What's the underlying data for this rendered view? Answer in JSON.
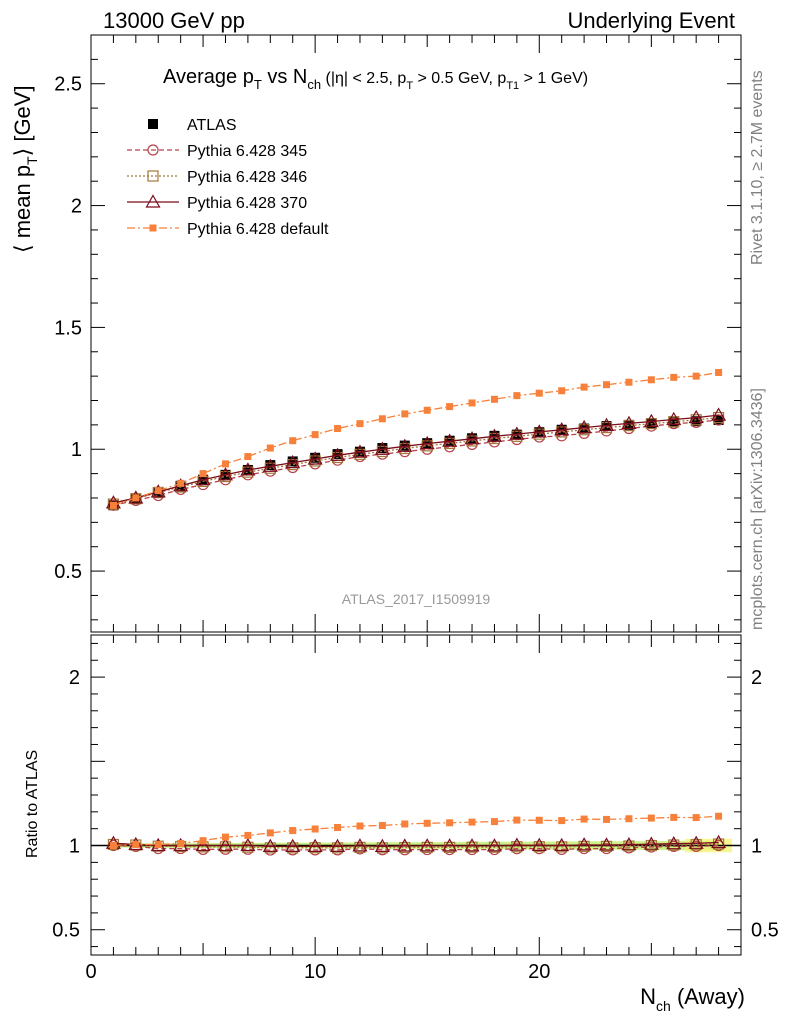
{
  "header": {
    "left": "13000 GeV pp",
    "right": "Underlying Event"
  },
  "side_text": {
    "rivet": "Rivet 3.1.10, ≥ 2.7M events",
    "mcplots": "mcplots.cern.ch [arXiv:1306.3436]"
  },
  "watermark": "ATLAS_2017_I1509919",
  "title": {
    "prefix": "Average p",
    "sub1": "T",
    "mid": " vs N",
    "sub2": "ch",
    "cuts": " (|η| < 2.5, p",
    "sub3": "T",
    "cuts2": " > 0.5 GeV, p",
    "sub4": "T1",
    "cuts3": " > 1 GeV)"
  },
  "colors": {
    "atlas": "#000000",
    "p345": "#b8404a",
    "p346": "#a07838",
    "p370": "#7a0c1c",
    "pdef": "#f7813a",
    "band_green": "#c8f07a",
    "band_yellow": "#f4f47a"
  },
  "chart_data": [
    {
      "type": "line",
      "panel": "main",
      "ylabel": "⟨ mean p",
      "ylabel_sub": "T",
      "ylabel_suffix": "⟩ [GeV]",
      "xlim": [
        0,
        29
      ],
      "ylim": [
        0.25,
        2.7
      ],
      "yticks": [
        0.5,
        1,
        1.5,
        2,
        2.5
      ],
      "legend_position": "top-left",
      "x": [
        1,
        2,
        3,
        4,
        5,
        6,
        7,
        8,
        9,
        10,
        11,
        12,
        13,
        14,
        15,
        16,
        17,
        18,
        19,
        20,
        21,
        22,
        23,
        24,
        25,
        26,
        27,
        28
      ],
      "series": [
        {
          "name": "ATLAS",
          "marker": "square-filled",
          "values": [
            0.77,
            0.795,
            0.825,
            0.85,
            0.875,
            0.895,
            0.915,
            0.935,
            0.95,
            0.965,
            0.98,
            0.99,
            1.005,
            1.015,
            1.025,
            1.035,
            1.045,
            1.055,
            1.06,
            1.07,
            1.08,
            1.085,
            1.095,
            1.1,
            1.105,
            1.11,
            1.115,
            1.12
          ]
        },
        {
          "name": "Pythia 6.428 345",
          "marker": "circle",
          "values": [
            0.77,
            0.79,
            0.81,
            0.835,
            0.855,
            0.875,
            0.895,
            0.91,
            0.925,
            0.94,
            0.955,
            0.97,
            0.98,
            0.99,
            1.0,
            1.01,
            1.02,
            1.03,
            1.04,
            1.05,
            1.055,
            1.065,
            1.075,
            1.085,
            1.095,
            1.105,
            1.11,
            1.12
          ]
        },
        {
          "name": "Pythia 6.428 346",
          "marker": "square-open",
          "values": [
            0.775,
            0.797,
            0.822,
            0.845,
            0.868,
            0.888,
            0.906,
            0.922,
            0.937,
            0.952,
            0.966,
            0.979,
            0.991,
            1.003,
            1.014,
            1.024,
            1.034,
            1.044,
            1.053,
            1.062,
            1.071,
            1.08,
            1.089,
            1.097,
            1.105,
            1.113,
            1.121,
            1.13
          ]
        },
        {
          "name": "Pythia 6.428 370",
          "marker": "triangle",
          "values": [
            0.78,
            0.8,
            0.825,
            0.85,
            0.875,
            0.895,
            0.915,
            0.93,
            0.945,
            0.96,
            0.975,
            0.988,
            1.0,
            1.012,
            1.023,
            1.033,
            1.043,
            1.053,
            1.062,
            1.071,
            1.08,
            1.089,
            1.098,
            1.106,
            1.114,
            1.122,
            1.13,
            1.14
          ]
        },
        {
          "name": "Pythia 6.428 default",
          "marker": "square-small",
          "values": [
            0.77,
            0.8,
            0.83,
            0.86,
            0.9,
            0.94,
            0.97,
            1.005,
            1.035,
            1.06,
            1.085,
            1.105,
            1.125,
            1.145,
            1.16,
            1.175,
            1.19,
            1.205,
            1.22,
            1.23,
            1.24,
            1.255,
            1.265,
            1.275,
            1.285,
            1.295,
            1.3,
            1.315
          ]
        }
      ]
    },
    {
      "type": "line",
      "panel": "ratio",
      "ylabel": "Ratio to ATLAS",
      "xlabel": "N",
      "xlabel_sub": "ch",
      "xlabel_suffix": " (Away)",
      "xlim": [
        0,
        29
      ],
      "ylim": [
        0.35,
        2.25
      ],
      "xticks": [
        0,
        10,
        20
      ],
      "yticks": [
        0.5,
        1,
        2
      ],
      "x": [
        1,
        2,
        3,
        4,
        5,
        6,
        7,
        8,
        9,
        10,
        11,
        12,
        13,
        14,
        15,
        16,
        17,
        18,
        19,
        20,
        21,
        22,
        23,
        24,
        25,
        26,
        27,
        28
      ],
      "series": [
        {
          "name": "Pythia 6.428 345",
          "marker": "circle",
          "values": [
            1.0,
            0.995,
            0.982,
            0.982,
            0.977,
            0.978,
            0.978,
            0.973,
            0.974,
            0.974,
            0.974,
            0.98,
            0.975,
            0.975,
            0.976,
            0.976,
            0.976,
            0.976,
            0.981,
            0.981,
            0.977,
            0.982,
            0.982,
            0.986,
            0.991,
            0.995,
            0.995,
            1.0
          ]
        },
        {
          "name": "Pythia 6.428 346",
          "marker": "square-open",
          "values": [
            1.006,
            1.003,
            0.996,
            0.994,
            0.992,
            0.992,
            0.99,
            0.986,
            0.986,
            0.987,
            0.986,
            0.989,
            0.986,
            0.988,
            0.989,
            0.989,
            0.99,
            0.99,
            0.993,
            0.993,
            0.992,
            0.995,
            0.995,
            0.997,
            1.0,
            1.003,
            1.005,
            1.009
          ]
        },
        {
          "name": "Pythia 6.428 370",
          "marker": "triangle",
          "values": [
            1.013,
            1.006,
            1.0,
            1.0,
            1.0,
            1.0,
            1.0,
            0.995,
            0.995,
            0.995,
            0.995,
            0.998,
            0.995,
            0.997,
            0.998,
            0.998,
            0.998,
            0.998,
            1.002,
            1.001,
            1.0,
            1.004,
            1.003,
            1.005,
            1.008,
            1.011,
            1.013,
            1.018
          ]
        },
        {
          "name": "Pythia 6.428 default",
          "marker": "square-small",
          "values": [
            1.0,
            1.006,
            1.006,
            1.012,
            1.029,
            1.05,
            1.06,
            1.075,
            1.089,
            1.098,
            1.107,
            1.116,
            1.119,
            1.128,
            1.132,
            1.135,
            1.139,
            1.142,
            1.151,
            1.15,
            1.148,
            1.157,
            1.155,
            1.159,
            1.163,
            1.167,
            1.166,
            1.174
          ]
        }
      ]
    }
  ]
}
